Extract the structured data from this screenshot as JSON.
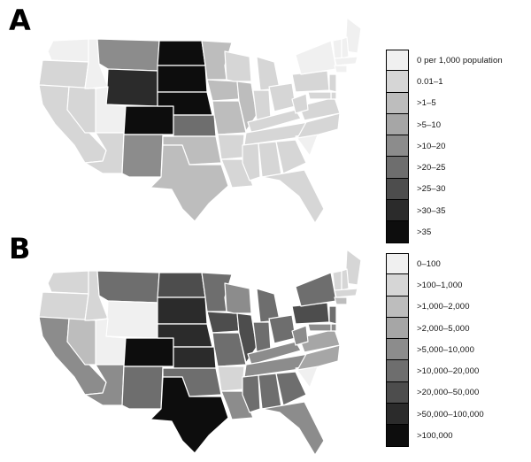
{
  "panels": [
    {
      "letter": "A",
      "legend": [
        {
          "label": "0 per 1,000 population",
          "color": "#f0f0f0"
        },
        {
          "label": "0.01–1",
          "color": "#d6d6d6"
        },
        {
          "label": ">1–5",
          "color": "#bdbdbd"
        },
        {
          "label": ">5–10",
          "color": "#a6a6a6"
        },
        {
          "label": ">10–20",
          "color": "#8c8c8c"
        },
        {
          "label": ">20–25",
          "color": "#6e6e6e"
        },
        {
          "label": ">25–30",
          "color": "#4d4d4d"
        },
        {
          "label": ">30–35",
          "color": "#2b2b2b"
        },
        {
          "label": ">35",
          "color": "#0d0d0d"
        }
      ],
      "states": {
        "WA": 0,
        "OR": 1,
        "CA": 1,
        "NV": 1,
        "ID": 0,
        "MT": 4,
        "WY": 7,
        "UT": 0,
        "AZ": 1,
        "CO": 8,
        "NM": 4,
        "ND": 8,
        "SD": 8,
        "NE": 8,
        "KS": 5,
        "OK": 2,
        "TX": 2,
        "MN": 2,
        "IA": 2,
        "MO": 2,
        "AR": 1,
        "LA": 1,
        "WI": 1,
        "IL": 2,
        "MI": 1,
        "IN": 1,
        "OH": 1,
        "KY": 1,
        "TN": 1,
        "MS": 1,
        "AL": 1,
        "GA": 1,
        "FL": 1,
        "SC": 0,
        "NC": 1,
        "VA": 1,
        "WV": 1,
        "PA": 1,
        "NY": 0,
        "ME": 0,
        "VT": 0,
        "NH": 0,
        "MA": 0,
        "CT": 0,
        "NJ": 1,
        "DE": 1,
        "MD": 1
      }
    },
    {
      "letter": "B",
      "legend": [
        {
          "label": "0–100",
          "color": "#f0f0f0"
        },
        {
          "label": ">100–1,000",
          "color": "#d6d6d6"
        },
        {
          "label": ">1,000–2,000",
          "color": "#bdbdbd"
        },
        {
          "label": ">2,000–5,000",
          "color": "#a6a6a6"
        },
        {
          "label": ">5,000–10,000",
          "color": "#8c8c8c"
        },
        {
          "label": ">10,000–20,000",
          "color": "#6e6e6e"
        },
        {
          "label": ">20,000–50,000",
          "color": "#4d4d4d"
        },
        {
          "label": ">50,000–100,000",
          "color": "#2b2b2b"
        },
        {
          "label": ">100,000",
          "color": "#0d0d0d"
        }
      ],
      "states": {
        "WA": 1,
        "OR": 1,
        "CA": 4,
        "NV": 2,
        "ID": 1,
        "MT": 5,
        "WY": 0,
        "UT": 0,
        "AZ": 4,
        "CO": 8,
        "NM": 5,
        "ND": 6,
        "SD": 7,
        "NE": 7,
        "KS": 7,
        "OK": 5,
        "TX": 8,
        "MN": 5,
        "IA": 6,
        "MO": 5,
        "AR": 1,
        "LA": 4,
        "WI": 4,
        "IL": 6,
        "MI": 5,
        "IN": 5,
        "OH": 5,
        "KY": 4,
        "TN": 4,
        "MS": 5,
        "AL": 5,
        "GA": 5,
        "FL": 4,
        "SC": 0,
        "NC": 3,
        "VA": 3,
        "WV": 4,
        "PA": 6,
        "NY": 5,
        "ME": 1,
        "VT": 1,
        "NH": 1,
        "MA": 1,
        "CT": 2,
        "NJ": 5,
        "DE": 4,
        "MD": 4
      }
    }
  ]
}
